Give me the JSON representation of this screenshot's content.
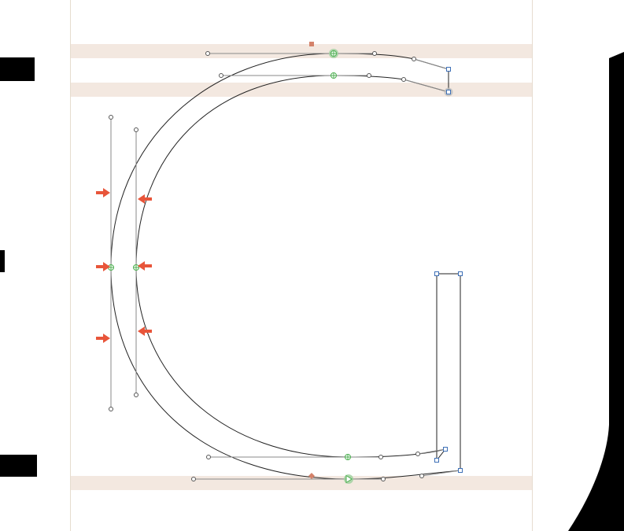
{
  "editor": {
    "glyph_name": "",
    "colors": {
      "background": "#ffffff",
      "metric_band": "#f3e8e0",
      "canvas_border": "#e6dccf",
      "outline": "#222222",
      "handle_line": "#8a8a8a",
      "handle_point": "#555555",
      "oncurve_smooth": "#4caf50",
      "corner_point": "#3d6fb6",
      "start_highlight": "#9ccf9c",
      "selected_marker": "#d4826a",
      "arrow": "#e8553a",
      "neighbor_glyph": "#000000"
    },
    "icons": {
      "smooth_point": "circle-plus-icon",
      "corner_point": "square-icon",
      "start_point": "triangle-start-icon",
      "offcurve_point": "small-circle-icon",
      "direction_arrow": "arrow-right-icon",
      "anchor": "diamond-icon"
    }
  }
}
